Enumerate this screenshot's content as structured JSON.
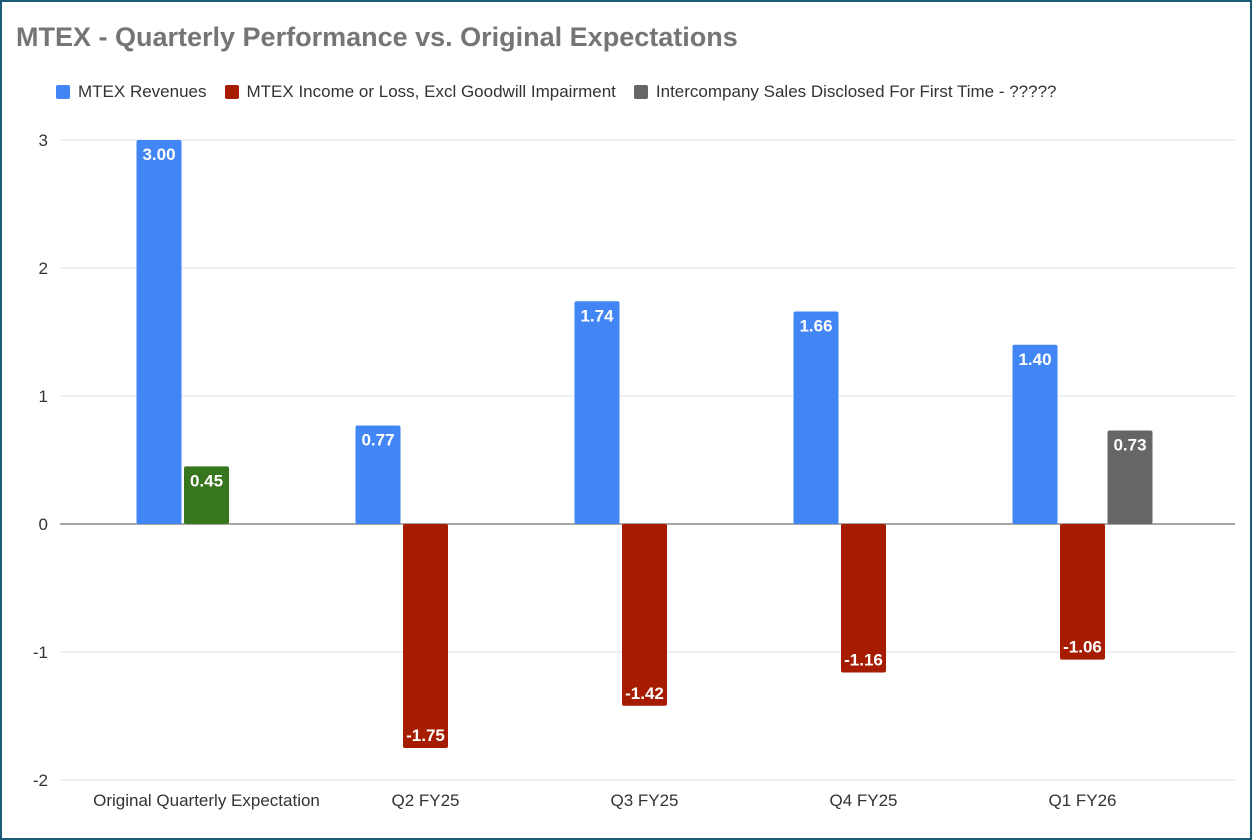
{
  "chart_data": {
    "type": "bar",
    "title": "MTEX - Quarterly Performance vs. Original Expectations",
    "categories": [
      "Original Quarterly Expectation",
      "Q2 FY25",
      "Q3 FY25",
      "Q4 FY25",
      "Q1 FY26"
    ],
    "series": [
      {
        "name": "MTEX Revenues",
        "color": "#4285f4",
        "values": [
          3.0,
          0.77,
          1.74,
          1.66,
          1.4
        ],
        "labels": [
          "3.00",
          "0.77",
          "1.74",
          "1.66",
          "1.40"
        ]
      },
      {
        "name": "MTEX Income or Loss, Excl Goodwill Impairment",
        "color": "#a61c00",
        "point_colors": [
          "#38761d",
          null,
          null,
          null,
          null
        ],
        "values": [
          0.45,
          -1.75,
          -1.42,
          -1.16,
          -1.06
        ],
        "labels": [
          "0.45",
          "-1.75",
          "-1.42",
          "-1.16",
          "-1.06"
        ]
      },
      {
        "name": "Intercompany Sales Disclosed For First Time - ?????",
        "color": "#666666",
        "values": [
          null,
          null,
          null,
          null,
          0.73
        ],
        "labels": [
          null,
          null,
          null,
          null,
          "0.73"
        ]
      }
    ],
    "yticks": [
      "3",
      "2",
      "1",
      "0",
      "-1",
      "-2"
    ],
    "ylim": [
      -2,
      3
    ],
    "grid": true,
    "legend": "top-left",
    "xlabel": "",
    "ylabel": ""
  }
}
